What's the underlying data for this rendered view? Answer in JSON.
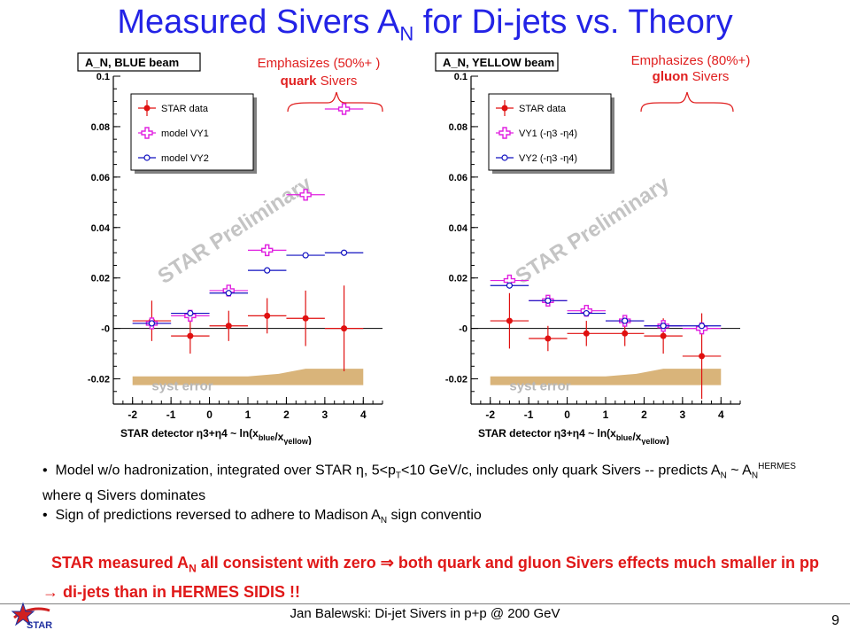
{
  "slide": {
    "title_main": "Measured Sivers A",
    "title_sub": "N",
    "title_rest": " for Di-jets vs. Theory",
    "left_emph_line1": "Emphasizes (50%+ )",
    "left_emph_bold": "quark",
    "left_emph_rest": " Sivers",
    "right_emph_line1": "Emphasizes (80%+)",
    "right_emph_bold": "gluon",
    "right_emph_rest": " Sivers",
    "bullet1_a": "Model w/o hadronization, integrated over STAR η, 5<p",
    "bullet1_sub": "T",
    "bullet1_b": "<10 GeV/c, includes only quark Sivers -- predicts A",
    "bullet1_sub2": "N",
    "bullet1_c": " ~ A",
    "bullet1_sub3": "N",
    "bullet1_sup": "HERMES",
    "bullet1_d": " where q Sivers dominates",
    "bullet2_a": "Sign of predictions reversed to adhere to Madison A",
    "bullet2_sub": "N",
    "bullet2_b": " sign conventio",
    "concl_a": "STAR measured A",
    "concl_sub": "N",
    "concl_b": " all consistent with zero ⇒ both quark and gluon Sivers effects much smaller in pp → di-jets than in HERMES SIDIS !!",
    "footer": "Jan Balewski: Di-jet Sivers in p+p @ 200 GeV",
    "page": "9",
    "logo_text": "STAR"
  },
  "chart_data": [
    {
      "type": "scatter",
      "title": "A_N,  BLUE beam",
      "xlabel_a": "STAR detector  η3+η4     ~    ln(x",
      "xlabel_sub1": "blue",
      "xlabel_b": "/x",
      "xlabel_sub2": "yellow",
      "xlabel_c": ")",
      "watermark": "STAR Preliminary",
      "syst_label": "syst error",
      "xlim": [
        -2.5,
        4.5
      ],
      "ylim": [
        -0.03,
        0.1
      ],
      "xticks": [
        "-2",
        "-1",
        "0",
        "1",
        "2",
        "3",
        "4"
      ],
      "xtick_values": [
        -2,
        -1,
        0,
        1,
        2,
        3,
        4
      ],
      "yticks": [
        "-0.02",
        "-0",
        "0.02",
        "0.04",
        "0.06",
        "0.08",
        "0.1"
      ],
      "ytick_values": [
        -0.02,
        0,
        0.02,
        0.04,
        0.06,
        0.08,
        0.1
      ],
      "legend": [
        "STAR data",
        "model VY1",
        "model VY2"
      ],
      "series": [
        {
          "name": "STAR data",
          "color": "#e01010",
          "marker": "dot",
          "x": [
            -1.5,
            -0.5,
            0.5,
            1.5,
            2.5,
            3.5
          ],
          "y": [
            0.003,
            -0.003,
            0.001,
            0.005,
            0.004,
            0.0
          ],
          "xerr": [
            0.5,
            0.5,
            0.5,
            0.5,
            0.5,
            0.5
          ],
          "yerr": [
            0.008,
            0.007,
            0.006,
            0.007,
            0.011,
            0.017
          ]
        },
        {
          "name": "model VY1",
          "color": "#e020e0",
          "marker": "cross",
          "x": [
            -1.5,
            -0.5,
            0.5,
            1.5,
            2.5,
            3.5
          ],
          "y": [
            0.002,
            0.005,
            0.015,
            0.031,
            0.053,
            0.087
          ],
          "xerr": [
            0.5,
            0.5,
            0.5,
            0.5,
            0.5,
            0.5
          ]
        },
        {
          "name": "model VY2",
          "color": "#1010c0",
          "marker": "circle",
          "x": [
            -1.5,
            -0.5,
            0.5,
            1.5,
            2.5,
            3.5
          ],
          "y": [
            0.002,
            0.006,
            0.014,
            0.023,
            0.029,
            0.03
          ],
          "xerr": [
            0.5,
            0.5,
            0.5,
            0.5,
            0.5,
            0.5
          ]
        }
      ],
      "syst_band": {
        "x": [
          -2,
          -1,
          0,
          1,
          1.8,
          2.5,
          3.5,
          4
        ],
        "y": [
          -0.019,
          -0.019,
          -0.019,
          -0.019,
          -0.018,
          -0.016,
          -0.016,
          -0.016
        ]
      }
    },
    {
      "type": "scatter",
      "title": "A_N,  YELLOW beam",
      "xlabel_a": "STAR detector  η3+η4     ~    ln(x",
      "xlabel_sub1": "blue",
      "xlabel_b": "/x",
      "xlabel_sub2": "yellow",
      "xlabel_c": ")",
      "watermark": "STAR Preliminary",
      "syst_label": "syst error",
      "xlim": [
        -2.5,
        4.5
      ],
      "ylim": [
        -0.03,
        0.1
      ],
      "xticks": [
        "-2",
        "-1",
        "0",
        "1",
        "2",
        "3",
        "4"
      ],
      "xtick_values": [
        -2,
        -1,
        0,
        1,
        2,
        3,
        4
      ],
      "yticks": [
        "-0.02",
        "-0",
        "0.02",
        "0.04",
        "0.06",
        "0.08",
        "0.1"
      ],
      "ytick_values": [
        -0.02,
        0,
        0.02,
        0.04,
        0.06,
        0.08,
        0.1
      ],
      "legend": [
        "STAR data",
        "VY1 (-η3 -η4)",
        "VY2 (-η3 -η4)"
      ],
      "series": [
        {
          "name": "STAR data",
          "color": "#e01010",
          "marker": "dot",
          "x": [
            -1.5,
            -0.5,
            0.5,
            1.5,
            2.5,
            3.5
          ],
          "y": [
            0.003,
            -0.004,
            -0.002,
            -0.002,
            -0.003,
            -0.011
          ],
          "xerr": [
            0.5,
            0.5,
            0.5,
            0.5,
            0.5,
            0.5
          ],
          "yerr": [
            0.011,
            0.005,
            0.005,
            0.005,
            0.007,
            0.017
          ]
        },
        {
          "name": "VY1 (-η3 -η4)",
          "color": "#e020e0",
          "marker": "cross",
          "x": [
            -1.5,
            -0.5,
            0.5,
            1.5,
            2.5,
            3.5
          ],
          "y": [
            0.019,
            0.011,
            0.007,
            0.003,
            0.001,
            0.0
          ],
          "xerr": [
            0.5,
            0.5,
            0.5,
            0.5,
            0.5,
            0.5
          ]
        },
        {
          "name": "VY2 (-η3 -η4)",
          "color": "#1010c0",
          "marker": "circle",
          "x": [
            -1.5,
            -0.5,
            0.5,
            1.5,
            2.5,
            3.5
          ],
          "y": [
            0.017,
            0.011,
            0.006,
            0.003,
            0.001,
            0.001
          ],
          "xerr": [
            0.5,
            0.5,
            0.5,
            0.5,
            0.5,
            0.5
          ]
        }
      ],
      "syst_band": {
        "x": [
          -2,
          -1,
          0,
          1,
          1.8,
          2.5,
          3.5,
          4
        ],
        "y": [
          -0.019,
          -0.019,
          -0.019,
          -0.019,
          -0.018,
          -0.016,
          -0.016,
          -0.016
        ]
      }
    }
  ]
}
